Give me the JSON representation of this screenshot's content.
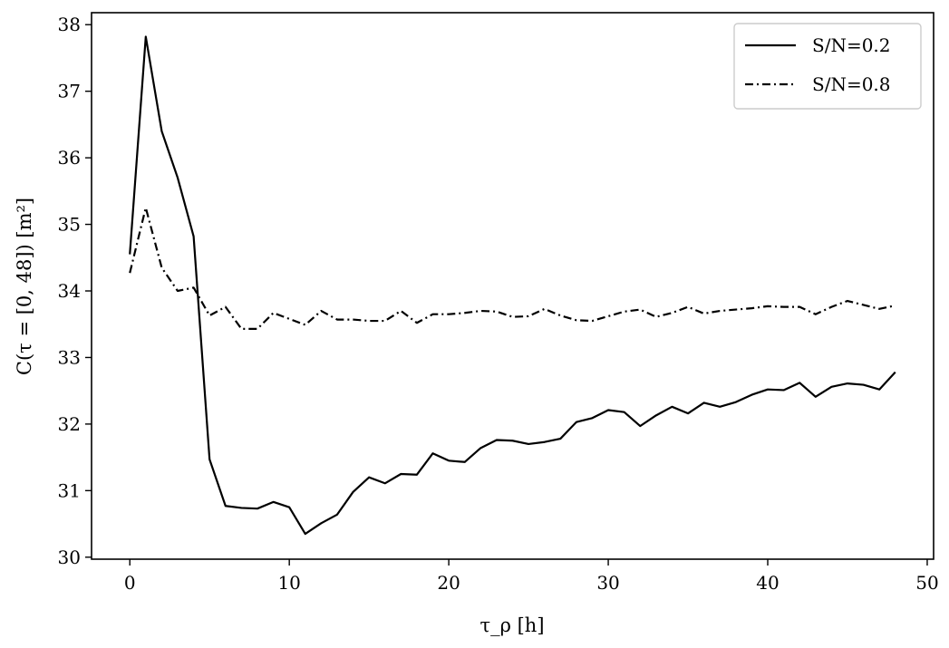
{
  "chart_data": {
    "type": "line",
    "xlabel": "τ_ρ [h]",
    "ylabel": "C(τ = [0, 48]) [m²]",
    "xlim": [
      -2.4,
      50.4
    ],
    "ylim": [
      29.97,
      38.18
    ],
    "xticks": [
      0,
      10,
      20,
      30,
      40,
      50
    ],
    "yticks": [
      30,
      31,
      32,
      33,
      34,
      35,
      36,
      37,
      38
    ],
    "grid": false,
    "legend_position": "top-right",
    "x": [
      0,
      1,
      2,
      3,
      4,
      5,
      6,
      7,
      8,
      9,
      10,
      11,
      12,
      13,
      14,
      15,
      16,
      17,
      18,
      19,
      20,
      21,
      22,
      23,
      24,
      25,
      26,
      27,
      28,
      29,
      30,
      31,
      32,
      33,
      34,
      35,
      36,
      37,
      38,
      39,
      40,
      41,
      42,
      43,
      44,
      45,
      46,
      47,
      48
    ],
    "series": [
      {
        "name": "S/N=0.2",
        "linestyle": "solid",
        "color": "#000000",
        "values": [
          34.55,
          37.82,
          36.4,
          35.7,
          34.82,
          31.47,
          30.77,
          30.74,
          30.73,
          30.83,
          30.75,
          30.35,
          30.51,
          30.64,
          30.98,
          31.2,
          31.11,
          31.25,
          31.24,
          31.56,
          31.45,
          31.43,
          31.64,
          31.76,
          31.75,
          31.7,
          31.73,
          31.78,
          32.03,
          32.09,
          32.21,
          32.18,
          31.97,
          32.13,
          32.26,
          32.16,
          32.32,
          32.26,
          32.33,
          32.44,
          32.52,
          32.51,
          32.62,
          32.41,
          32.56,
          32.61,
          32.59,
          32.52,
          32.78
        ]
      },
      {
        "name": "S/N=0.8",
        "linestyle": "dashdot",
        "color": "#000000",
        "values": [
          34.27,
          35.25,
          34.35,
          34.0,
          34.05,
          33.63,
          33.76,
          33.43,
          33.43,
          33.67,
          33.58,
          33.49,
          33.7,
          33.57,
          33.57,
          33.55,
          33.55,
          33.7,
          33.52,
          33.65,
          33.65,
          33.67,
          33.7,
          33.69,
          33.61,
          33.62,
          33.73,
          33.63,
          33.56,
          33.55,
          33.62,
          33.69,
          33.72,
          33.61,
          33.67,
          33.76,
          33.66,
          33.7,
          33.72,
          33.74,
          33.77,
          33.76,
          33.76,
          33.65,
          33.76,
          33.85,
          33.79,
          33.73,
          33.78
        ]
      }
    ]
  }
}
